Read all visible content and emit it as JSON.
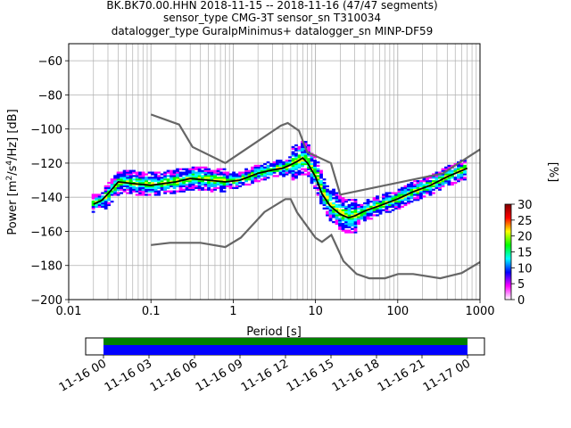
{
  "header": {
    "title_line1": "BK.BK70.00.HHN   2018-11-15 -- 2018-11-16  (47/47 segments)",
    "title_line2": "sensor_type CMG-3T sensor_sn T310034",
    "title_line3": "datalogger_type GuralpMinimus+ datalogger_sn MINP-DF59"
  },
  "chart_data": {
    "type": "heatmap",
    "xscale": "log",
    "xlabel": "Period [s]",
    "ylabel": "Power [m²/s⁴/Hz] [dB]",
    "xlim": [
      0.01,
      1000
    ],
    "ylim": [
      -200,
      -50
    ],
    "xticks": [
      "0.01",
      "0.1",
      "1",
      "10",
      "100",
      "1000"
    ],
    "yticks": [
      "−200",
      "−180",
      "−160",
      "−140",
      "−120",
      "−100",
      "−80",
      "−60"
    ],
    "ytick_values": [
      -200,
      -180,
      -160,
      -140,
      -120,
      -100,
      -80,
      -60
    ],
    "grid": true,
    "noise_model_high": {
      "period": [
        0.1,
        0.22,
        0.32,
        0.8,
        3.8,
        4.6,
        6.3,
        7.9,
        15.4,
        20,
        354.8,
        1000
      ],
      "db": [
        -91.5,
        -97.4,
        -110.5,
        -120,
        -98,
        -96.5,
        -101,
        -113.5,
        -120,
        -138.5,
        -126,
        -112
      ]
    },
    "noise_model_low": {
      "period": [
        0.1,
        0.17,
        0.4,
        0.8,
        1.24,
        2.4,
        4.3,
        5,
        6,
        10,
        12,
        15.6,
        21.9,
        31.6,
        45,
        70,
        101,
        154,
        328,
        600,
        1000
      ],
      "db": [
        -168,
        -166.7,
        -166.7,
        -169.2,
        -163.7,
        -148.6,
        -141.1,
        -141.1,
        -149,
        -163.8,
        -166.2,
        -162.1,
        -177.5,
        -185,
        -187.5,
        -187.5,
        -185,
        -185,
        -187.5,
        -184.4,
        -178
      ]
    },
    "mean_curve": {
      "period": [
        0.02,
        0.025,
        0.03,
        0.04,
        0.06,
        0.1,
        0.2,
        0.3,
        0.5,
        0.8,
        1.2,
        2,
        3,
        4,
        5,
        6,
        7,
        8,
        10,
        12,
        15,
        20,
        25,
        30,
        40,
        60,
        100,
        150,
        250,
        400,
        700
      ],
      "db": [
        -144,
        -142,
        -138,
        -131,
        -132,
        -133,
        -131,
        -129,
        -130,
        -131,
        -130,
        -126,
        -124,
        -123,
        -121,
        -119,
        -117,
        -120,
        -128,
        -138,
        -145,
        -150,
        -152,
        -151,
        -148,
        -145,
        -141,
        -137,
        -133,
        -128,
        -123
      ]
    },
    "colorbar": {
      "label": "[%]",
      "ticks": [
        "0",
        "5",
        "10",
        "15",
        "20",
        "25",
        "30"
      ],
      "range": [
        0,
        30
      ],
      "colors": [
        "#ffffff",
        "#ff00ff",
        "#0000ff",
        "#00ffff",
        "#00ff00",
        "#ffff00",
        "#ff0000",
        "#800000"
      ]
    },
    "timeline": {
      "ticks": [
        "11-16 00",
        "11-16 03",
        "11-16 06",
        "11-16 09",
        "11-16 12",
        "11-16 15",
        "11-16 18",
        "11-16 21",
        "11-17 00"
      ],
      "coverage_colors": [
        "#008000",
        "#0000ff"
      ]
    }
  }
}
